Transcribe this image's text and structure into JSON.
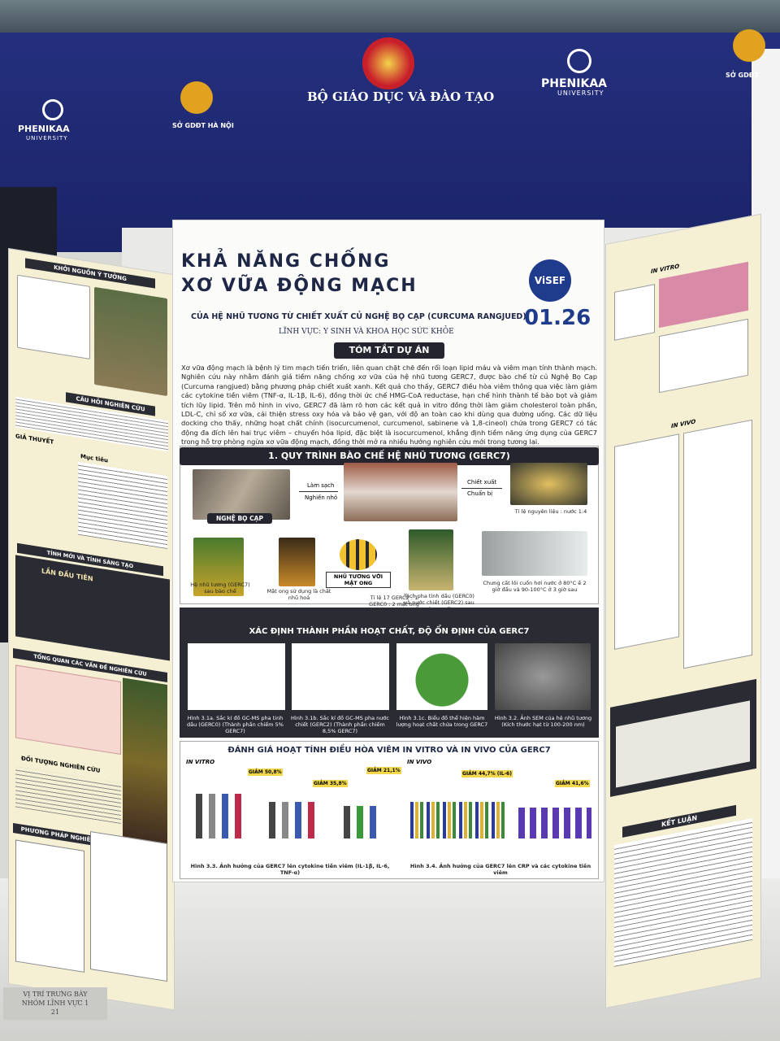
{
  "banner": {
    "logo_left": "PHENIKAA",
    "logo_left_sub": "UNIVERSITY",
    "dept_left": "SỞ GDĐT HÀ NỘI",
    "ministry": "BỘ GIÁO DỤC VÀ ĐÀO TẠO",
    "logo_right": "PHENIKAA",
    "logo_right_sub": "UNIVERSITY",
    "dept_right": "SỞ GDĐT"
  },
  "poster": {
    "title_line1": "KHẢ NĂNG CHỐNG",
    "title_line2": "XƠ VỮA ĐỘNG MẠCH",
    "subtitle": "CỦA HỆ NHŨ TƯƠNG TỪ CHIẾT XUẤT CỦ NGHỆ BỌ CẠP (CURCUMA RANGJUED)",
    "field": "LĨNH VỰC: Y SINH VÀ KHOA HỌC SỨC KHỎE",
    "badge": "ViSEF",
    "code": "01.26",
    "summary_heading": "TÓM TẮT DỰ ÁN",
    "summary": "Xơ vữa động mạch là bệnh lý tim mạch tiến triển, liên quan chặt chẽ đến rối loạn lipid máu và viêm mạn tính thành mạch. Nghiên cứu này nhằm đánh giá tiềm năng chống xơ vữa của hệ nhũ tương GERC7, được bào chế từ củ Nghệ Bọ Cạp (Curcuma rangjued) bằng phương pháp chiết xuất xanh. Kết quả cho thấy, GERC7 điều hòa viêm thông qua việc làm giảm các cytokine tiền viêm (TNF-α, IL-1β, IL-6), đồng thời ức chế HMG-CoA reductase, hạn chế hình thành tế bào bọt và giảm tích lũy lipid. Trên mô hình in vivo, GERC7 đã làm rõ hơn các kết quả in vitro đồng thời làm giảm cholesterol toàn phần, LDL-C, chỉ số xơ vữa, cải thiện stress oxy hóa và bảo vệ gan, với độ an toàn cao khi dùng qua đường uống. Các dữ liệu docking cho thấy, những hoạt chất chính (isocurcumenol, curcumenol, sabinene và 1,8-cineol) chứa trong GERC7 có tác động đa đích lên hai trục viêm – chuyển hóa lipid, đặc biệt là isocurcumenol, khẳng định tiềm năng ứng dụng của GERC7 trong hỗ trợ phòng ngừa xơ vữa động mạch, đồng thời mở ra nhiều hướng nghiên cứu mới trong tương lai.",
    "process": {
      "heading": "1. QUY TRÌNH BÀO CHẾ HỆ NHŨ TƯƠNG (GERC7)",
      "raw": "NGHỆ BỌ CẠP",
      "arrow1_top": "Làm sạch",
      "arrow1_bottom": "Nghiền nhỏ",
      "arrow2_top": "Chiết xuất",
      "arrow2_bottom": "Chuẩn bị",
      "ratio": "Tỉ lệ nguyên liệu : nước 1:4",
      "emulsion": "Hệ nhũ tương (GERC7) sau bào chế",
      "honey": "Mật ong sử dụng là chất nhũ hoá",
      "bee": "NHŨ TƯƠNG VỚI MẬT ONG",
      "mix": "Tỉ lệ 17 GERC2 : 1 GERC0 : 2 mật ong",
      "separate": "Tách pha tinh dầu (GERC0) và nước chiết (GERC2) sau chưng cất",
      "distill": "Chưng cất lôi cuốn hơi nước ở 80°C ề 2 giờ đầu và 90-100°C ở 3 giờ sau"
    },
    "composition": {
      "heading": "XÁC ĐỊNH THÀNH PHẦN HOẠT CHẤT, ĐỘ ỔN ĐỊNH CỦA GERC7",
      "cap1": "Hình 3.1a. Sắc kí đồ GC-MS pha tinh dầu (GERC0) (Thành phần chiếm 5% GERC7)",
      "cap2": "Hình 3.1b. Sắc kí đồ GC-MS pha nước chiết (GERC2) (Thành phần chiếm 8,5% GERC7)",
      "cap3": "Hình 3.1c. Biểu đồ thể hiện hàm lượng hoạt chất chứa trong GERC7",
      "cap4": "Hình 3.2. Ảnh SEM của hệ nhũ tương (Kích thước hạt từ 100-200 nm)"
    },
    "evaluation": {
      "heading": "ĐÁNH GIÁ HOẠT TÍNH ĐIỀU HÒA VIÊM IN VITRO VÀ IN VIVO CỦA GERC7",
      "in_vitro": "IN VITRO",
      "in_vivo": "IN VIVO",
      "r1": "GIẢM 50,8%",
      "r2": "GIẢM 35,8%",
      "r3": "GIẢM 21,1%",
      "r4": "GIẢM 44,7% (IL-6)",
      "r5": "GIẢM 41,6%",
      "cap1": "Hình 3.3. Ảnh hưởng của GERC7 lên cytokine tiền viêm (IL-1β, IL-6, TNF-α)",
      "cap2": "Hình 3.4. Ảnh hưởng của GERC7 lên CRP và các cytokine tiền viêm"
    }
  },
  "left_panel": {
    "h1": "KHỞI NGUỒN Ý TƯỞNG",
    "h2": "CÂU HỎI NGHIÊN CỨU",
    "h3": "GIẢ THUYẾT",
    "h4": "Mục tiêu",
    "h5": "TÍNH MỚI VÀ TÍNH SÁNG TẠO",
    "h6": "LẦN ĐẦU TIÊN",
    "h7": "TỔNG QUAN CÁC VẤN ĐỀ NGHIÊN CỨU",
    "h8": "ĐỐI TƯỢNG NGHIÊN CỨU",
    "h9": "PHƯƠNG PHÁP NGHIÊN CỨU"
  },
  "right_panel": {
    "h1": "IN VITRO",
    "h2": "IN VIVO",
    "h3": "KẾT LUẬN"
  },
  "sign": {
    "line1": "VỊ TRÍ TRƯNG BÀY",
    "line2": "NHÓM LĨNH VỰC 1",
    "line3": "21"
  }
}
